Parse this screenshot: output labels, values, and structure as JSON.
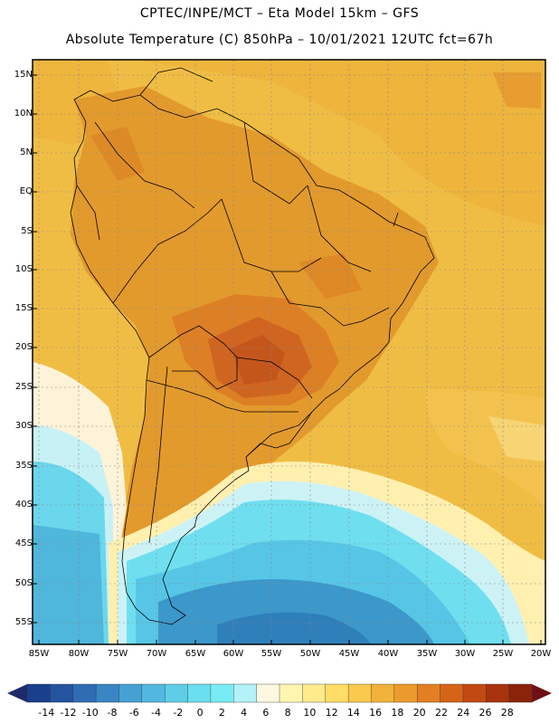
{
  "header": {
    "line1": "CPTEC/INPE/MCT –  Eta Model 15km – GFS",
    "line2": "Absolute Temperature (C) 850hPa – 10/01/2021 12UTC fct=67h"
  },
  "axes": {
    "lat_labels": [
      "15N",
      "10N",
      "5N",
      "EQ",
      "5S",
      "10S",
      "15S",
      "20S",
      "25S",
      "30S",
      "35S",
      "40S",
      "45S",
      "50S",
      "55S"
    ],
    "lon_labels": [
      "85W",
      "80W",
      "75W",
      "70W",
      "65W",
      "60W",
      "55W",
      "50W",
      "45W",
      "40W",
      "35W",
      "30W",
      "25W",
      "20W"
    ]
  },
  "colorbar": {
    "labels": [
      "-14",
      "-12",
      "-10",
      "-8",
      "-6",
      "-4",
      "-2",
      "0",
      "2",
      "4",
      "6",
      "8",
      "10",
      "12",
      "14",
      "16",
      "18",
      "20",
      "22",
      "24",
      "26",
      "28"
    ],
    "colors": [
      "#1a3f8c",
      "#2454a0",
      "#2f6cb3",
      "#3a85c4",
      "#45a0d4",
      "#52b8e0",
      "#5fcde8",
      "#6adfef",
      "#78ecf5",
      "#b3f3f7",
      "#fdf8e0",
      "#fff5b3",
      "#ffeb8c",
      "#ffdd66",
      "#f8c94a",
      "#f0b23a",
      "#eb9a2e",
      "#e37f22",
      "#d66418",
      "#c24a12",
      "#a8330e",
      "#8a2309"
    ],
    "low_arrow_color": "#1d2a6b",
    "high_arrow_color": "#6e0f14"
  },
  "map": {
    "projection": "lat-lon",
    "lon_range_deg": [
      -86,
      -19.5
    ],
    "lat_range_deg": [
      -58,
      16.5
    ],
    "background_color": "#f0bd44"
  }
}
